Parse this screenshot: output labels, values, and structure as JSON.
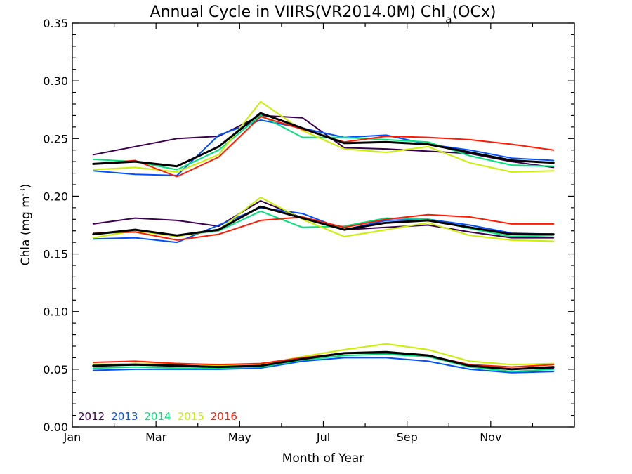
{
  "chart_data": {
    "type": "line",
    "title": "Annual Cycle in VIIRS(VR2014.0M) Chl",
    "title_sub": "a",
    "title_suffix": "(OCx)",
    "xlabel": "Month of Year",
    "ylabel_main": "Chla (mg m",
    "ylabel_sup": "-3",
    "ylabel_end": ")",
    "xlim": [
      0,
      12
    ],
    "ylim": [
      0,
      0.35
    ],
    "xticks": [
      {
        "value": 0,
        "label": "Jan"
      },
      {
        "value": 2,
        "label": "Mar"
      },
      {
        "value": 4,
        "label": "May"
      },
      {
        "value": 6,
        "label": "Jul"
      },
      {
        "value": 8,
        "label": "Sep"
      },
      {
        "value": 10,
        "label": "Nov"
      }
    ],
    "yticks": [
      {
        "value": 0.0,
        "label": "0.00"
      },
      {
        "value": 0.05,
        "label": "0.05"
      },
      {
        "value": 0.1,
        "label": "0.10"
      },
      {
        "value": 0.15,
        "label": "0.15"
      },
      {
        "value": 0.2,
        "label": "0.20"
      },
      {
        "value": 0.25,
        "label": "0.25"
      },
      {
        "value": 0.3,
        "label": "0.30"
      },
      {
        "value": 0.35,
        "label": "0.35"
      }
    ],
    "x": [
      0.5,
      1.5,
      2.5,
      3.5,
      4.5,
      5.5,
      6.5,
      7.5,
      8.5,
      9.5,
      10.5,
      11.5
    ],
    "legend_position": "bottom-left",
    "series": [
      {
        "name": "2012",
        "color": "#3c0050",
        "group": "upper",
        "values": [
          0.236,
          0.243,
          0.25,
          0.252,
          0.27,
          0.268,
          0.242,
          0.241,
          0.239,
          0.237,
          0.23,
          0.225
        ]
      },
      {
        "name": "2013",
        "color": "#0050ff",
        "group": "upper",
        "values": [
          0.222,
          0.219,
          0.218,
          0.253,
          0.266,
          0.259,
          0.251,
          0.253,
          0.245,
          0.24,
          0.233,
          0.231
        ]
      },
      {
        "name": "2014",
        "color": "#00e27a",
        "group": "upper",
        "values": [
          0.232,
          0.23,
          0.223,
          0.24,
          0.27,
          0.251,
          0.251,
          0.249,
          0.247,
          0.235,
          0.227,
          0.226
        ]
      },
      {
        "name": "2015",
        "color": "#c8f000",
        "group": "upper",
        "values": [
          0.223,
          0.225,
          0.221,
          0.236,
          0.282,
          0.257,
          0.241,
          0.238,
          0.243,
          0.229,
          0.221,
          0.222
        ]
      },
      {
        "name": "2016",
        "color": "#ff1a00",
        "group": "upper",
        "values": [
          0.228,
          0.231,
          0.217,
          0.234,
          0.269,
          0.258,
          0.247,
          0.252,
          0.251,
          0.249,
          0.245,
          0.24
        ]
      },
      {
        "name": "",
        "color": "#000000",
        "group": "upper-mean",
        "values": [
          0.228,
          0.23,
          0.226,
          0.243,
          0.272,
          0.259,
          0.246,
          0.247,
          0.245,
          0.238,
          0.231,
          0.229
        ]
      },
      {
        "name": "2012",
        "color": "#3c0050",
        "group": "middle",
        "values": [
          0.176,
          0.181,
          0.179,
          0.174,
          0.196,
          0.181,
          0.171,
          0.173,
          0.175,
          0.169,
          0.164,
          0.164
        ]
      },
      {
        "name": "2013",
        "color": "#0050ff",
        "group": "middle",
        "values": [
          0.163,
          0.164,
          0.16,
          0.175,
          0.19,
          0.185,
          0.171,
          0.179,
          0.18,
          0.175,
          0.168,
          0.167
        ]
      },
      {
        "name": "2014",
        "color": "#00e27a",
        "group": "middle",
        "values": [
          0.167,
          0.17,
          0.166,
          0.17,
          0.187,
          0.173,
          0.174,
          0.181,
          0.18,
          0.172,
          0.165,
          0.166
        ]
      },
      {
        "name": "2015",
        "color": "#c8f000",
        "group": "middle",
        "values": [
          0.164,
          0.17,
          0.165,
          0.171,
          0.199,
          0.18,
          0.165,
          0.171,
          0.177,
          0.166,
          0.162,
          0.161
        ]
      },
      {
        "name": "2016",
        "color": "#ff1a00",
        "group": "middle",
        "values": [
          0.168,
          0.169,
          0.162,
          0.167,
          0.179,
          0.182,
          0.173,
          0.18,
          0.184,
          0.182,
          0.176,
          0.176
        ]
      },
      {
        "name": "",
        "color": "#000000",
        "group": "middle-mean",
        "values": [
          0.167,
          0.171,
          0.166,
          0.171,
          0.191,
          0.181,
          0.171,
          0.177,
          0.179,
          0.173,
          0.167,
          0.167
        ]
      },
      {
        "name": "2012",
        "color": "#3c0050",
        "group": "lower",
        "values": [
          0.053,
          0.055,
          0.054,
          0.052,
          0.053,
          0.059,
          0.064,
          0.064,
          0.061,
          0.053,
          0.05,
          0.051
        ]
      },
      {
        "name": "2013",
        "color": "#0050ff",
        "group": "lower",
        "values": [
          0.049,
          0.05,
          0.05,
          0.05,
          0.051,
          0.057,
          0.06,
          0.06,
          0.057,
          0.05,
          0.047,
          0.048
        ]
      },
      {
        "name": "2014",
        "color": "#00e27a",
        "group": "lower",
        "values": [
          0.051,
          0.052,
          0.051,
          0.051,
          0.052,
          0.058,
          0.062,
          0.063,
          0.061,
          0.052,
          0.048,
          0.05
        ]
      },
      {
        "name": "2015",
        "color": "#c8f000",
        "group": "lower",
        "values": [
          0.054,
          0.055,
          0.055,
          0.053,
          0.054,
          0.061,
          0.067,
          0.072,
          0.067,
          0.057,
          0.054,
          0.055
        ]
      },
      {
        "name": "2016",
        "color": "#ff1a00",
        "group": "lower",
        "values": [
          0.056,
          0.057,
          0.055,
          0.054,
          0.055,
          0.06,
          0.064,
          0.065,
          0.062,
          0.054,
          0.052,
          0.054
        ]
      },
      {
        "name": "",
        "color": "#000000",
        "group": "lower-mean",
        "values": [
          0.053,
          0.054,
          0.053,
          0.052,
          0.053,
          0.059,
          0.064,
          0.065,
          0.062,
          0.053,
          0.05,
          0.052
        ]
      }
    ],
    "legend": [
      {
        "label": "2012",
        "color": "#3c0050"
      },
      {
        "label": "2013",
        "color": "#0050ff"
      },
      {
        "label": "2014",
        "color": "#00e27a"
      },
      {
        "label": "2015",
        "color": "#c8f000"
      },
      {
        "label": "2016",
        "color": "#ff1a00"
      }
    ]
  }
}
